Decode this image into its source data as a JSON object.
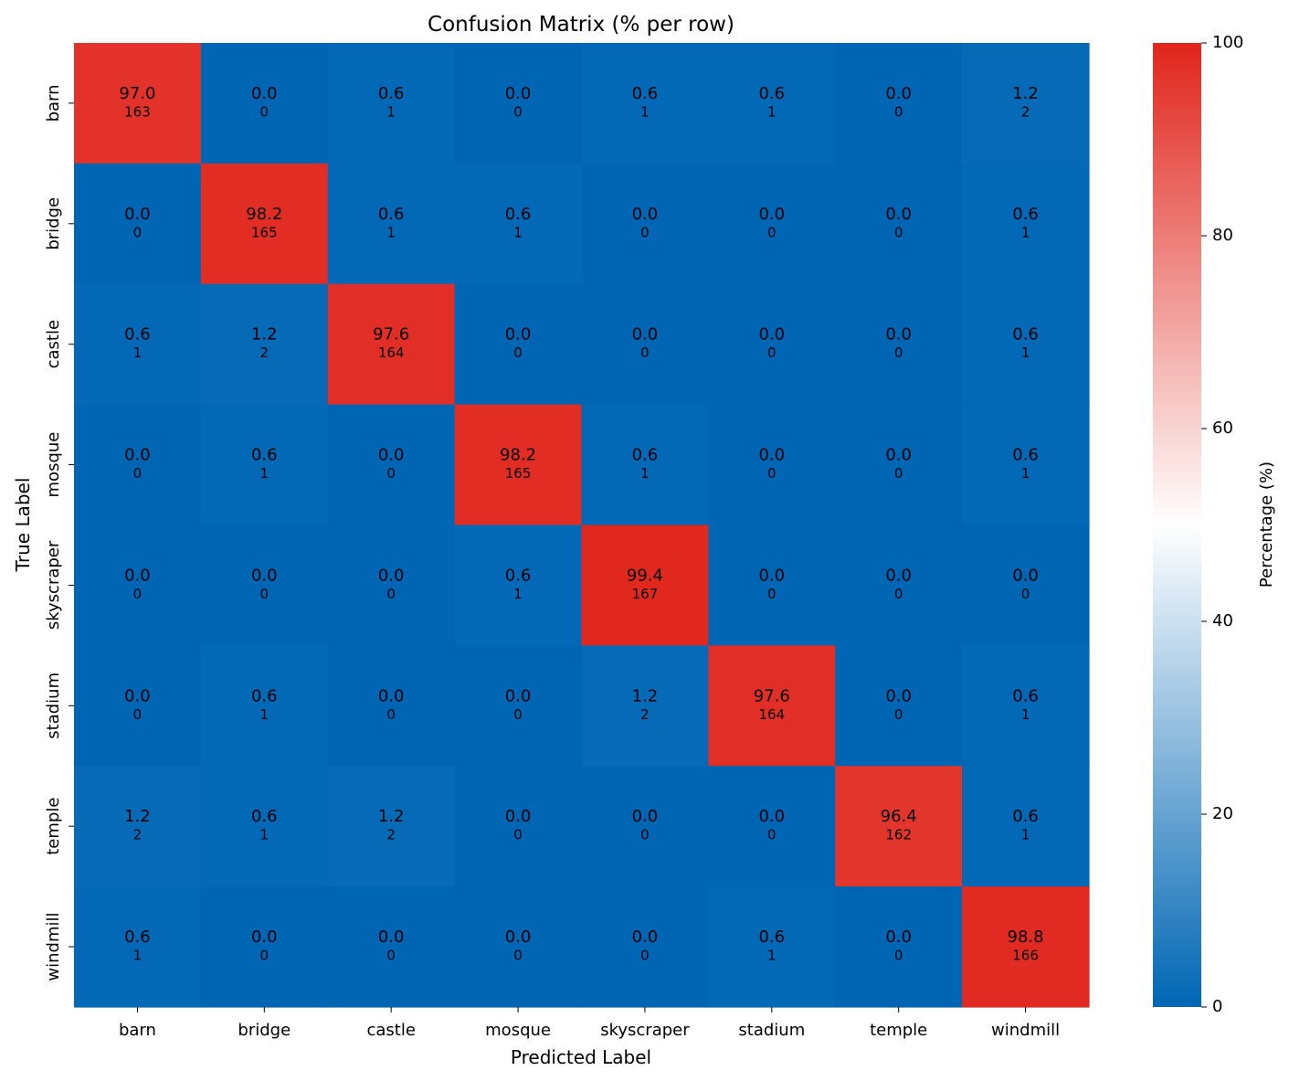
{
  "chart_data": {
    "type": "heatmap",
    "title": "Confusion Matrix (% per row)",
    "xlabel": "Predicted Label",
    "ylabel": "True Label",
    "x_categories": [
      "barn",
      "bridge",
      "castle",
      "mosque",
      "skyscraper",
      "stadium",
      "temple",
      "windmill"
    ],
    "y_categories": [
      "barn",
      "bridge",
      "castle",
      "mosque",
      "skyscraper",
      "stadium",
      "temple",
      "windmill"
    ],
    "percent": [
      [
        97.0,
        0.0,
        0.6,
        0.0,
        0.6,
        0.6,
        0.0,
        1.2
      ],
      [
        0.0,
        98.2,
        0.6,
        0.6,
        0.0,
        0.0,
        0.0,
        0.6
      ],
      [
        0.6,
        1.2,
        97.6,
        0.0,
        0.0,
        0.0,
        0.0,
        0.6
      ],
      [
        0.0,
        0.6,
        0.0,
        98.2,
        0.6,
        0.0,
        0.0,
        0.6
      ],
      [
        0.0,
        0.0,
        0.0,
        0.6,
        99.4,
        0.0,
        0.0,
        0.0
      ],
      [
        0.0,
        0.6,
        0.0,
        0.0,
        1.2,
        97.6,
        0.0,
        0.6
      ],
      [
        1.2,
        0.6,
        1.2,
        0.0,
        0.0,
        0.0,
        96.4,
        0.6
      ],
      [
        0.6,
        0.0,
        0.0,
        0.0,
        0.0,
        0.6,
        0.0,
        98.8
      ]
    ],
    "counts": [
      [
        163,
        0,
        1,
        0,
        1,
        1,
        0,
        2
      ],
      [
        0,
        165,
        1,
        1,
        0,
        0,
        0,
        1
      ],
      [
        1,
        2,
        164,
        0,
        0,
        0,
        0,
        1
      ],
      [
        0,
        1,
        0,
        165,
        1,
        0,
        0,
        1
      ],
      [
        0,
        0,
        0,
        1,
        167,
        0,
        0,
        0
      ],
      [
        0,
        1,
        0,
        0,
        2,
        164,
        0,
        1
      ],
      [
        2,
        1,
        2,
        0,
        0,
        0,
        162,
        1
      ],
      [
        1,
        0,
        0,
        0,
        0,
        1,
        0,
        166
      ]
    ],
    "colorbar": {
      "label": "Percentage (%)",
      "range": [
        0,
        100
      ],
      "ticks": [
        0,
        20,
        40,
        60,
        80,
        100
      ],
      "colors": {
        "low": "#0066b4",
        "mid": "#ffffff",
        "high": "#e0251c"
      }
    },
    "grid": false
  }
}
